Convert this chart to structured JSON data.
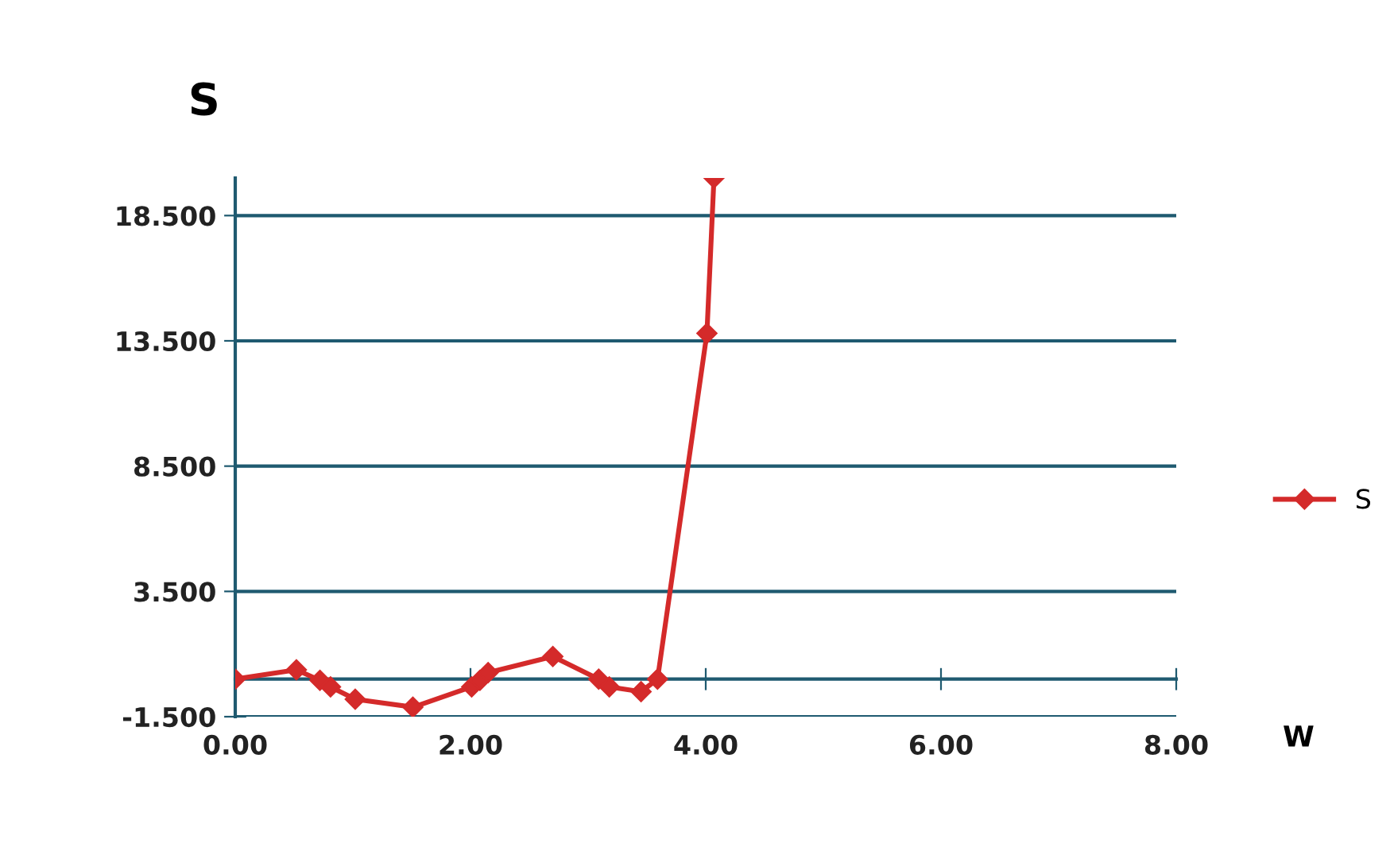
{
  "chart_data": {
    "type": "line",
    "title": "S",
    "xlabel": "W",
    "x": [
      0.0,
      0.52,
      0.72,
      0.81,
      1.02,
      1.51,
      2.01,
      2.08,
      2.15,
      2.7,
      3.09,
      3.18,
      3.45,
      3.59,
      4.01,
      4.07
    ],
    "series": [
      {
        "name": "S",
        "color": "#d42a2a",
        "values": [
          0.0,
          0.37,
          -0.05,
          -0.31,
          -0.8,
          -1.12,
          -0.31,
          -0.05,
          0.26,
          0.9,
          0.0,
          -0.31,
          -0.5,
          0.0,
          13.8,
          20.0
        ]
      }
    ],
    "xlim": [
      0,
      8
    ],
    "xticks": [
      {
        "value": 0,
        "label": "0.00"
      },
      {
        "value": 2,
        "label": "2.00"
      },
      {
        "value": 4,
        "label": "4.00"
      },
      {
        "value": 6,
        "label": "6.00"
      },
      {
        "value": 8,
        "label": "8.00"
      }
    ],
    "ylim": [
      -1.5,
      20
    ],
    "yticks": [
      {
        "value": -1.5,
        "label": "-1.500"
      },
      {
        "value": 3.5,
        "label": "3.500"
      },
      {
        "value": 8.5,
        "label": "8.500"
      },
      {
        "value": 13.5,
        "label": "13.500"
      },
      {
        "value": 18.5,
        "label": "18.500"
      }
    ],
    "grid": "y",
    "legend": "right",
    "marker": "diamond",
    "line_style": "solid"
  }
}
